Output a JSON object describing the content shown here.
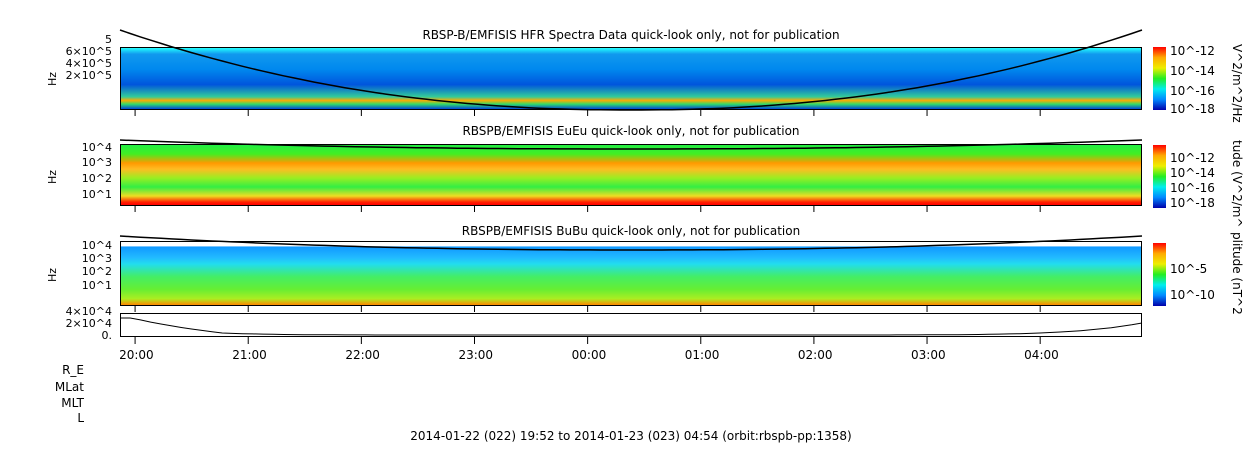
{
  "chart_data": [
    {
      "type": "heatmap",
      "title": "RBSP-B/EMFISIS  HFR Spectra Data quick-look only, not for publication",
      "ylabel": "Hz",
      "yticks": [
        "6×10^5",
        "4×10^5",
        "2×10^5"
      ],
      "ytick_top": "5",
      "colorbar_label": "V^2/m^2/Hz",
      "colorbar_ticks": [
        "10^-12",
        "10^-14",
        "10^-16",
        "10^-18"
      ],
      "colormap": "rainbow"
    },
    {
      "type": "heatmap",
      "title": "RBSPB/EMFISIS  EuEu quick-look only, not for publication",
      "ylabel": "Hz",
      "yticks": [
        "10^4",
        "10^3",
        "10^2",
        "10^1"
      ],
      "colorbar_label": "tude (V^2/m^",
      "colorbar_ticks": [
        "10^-12",
        "10^-14",
        "10^-16",
        "10^-18"
      ],
      "colormap": "rainbow"
    },
    {
      "type": "heatmap",
      "title": "RBSPB/EMFISIS  BuBu quick-look only, not for publication",
      "ylabel": "Hz",
      "yticks": [
        "10^4",
        "10^3",
        "10^2",
        "10^1"
      ],
      "colorbar_label": "plitude (nT^2",
      "colorbar_ticks": [
        "10^-5",
        "10^-10"
      ],
      "colormap": "rainbow"
    },
    {
      "type": "line",
      "yticks": [
        "4×10^4",
        "2×10^4",
        "0."
      ]
    }
  ],
  "xaxis": {
    "ticks": [
      "20:00",
      "21:00",
      "22:00",
      "23:00",
      "00:00",
      "01:00",
      "02:00",
      "03:00",
      "04:00"
    ],
    "start": "19:52",
    "end": "04:54"
  },
  "ephemeris_labels": [
    "R_E",
    "MLat",
    "MLT",
    "L"
  ],
  "footer": "2014-01-22 (022) 19:52 to 2014-01-23 (023) 04:54 (orbit:rbspb-pp:1358)"
}
